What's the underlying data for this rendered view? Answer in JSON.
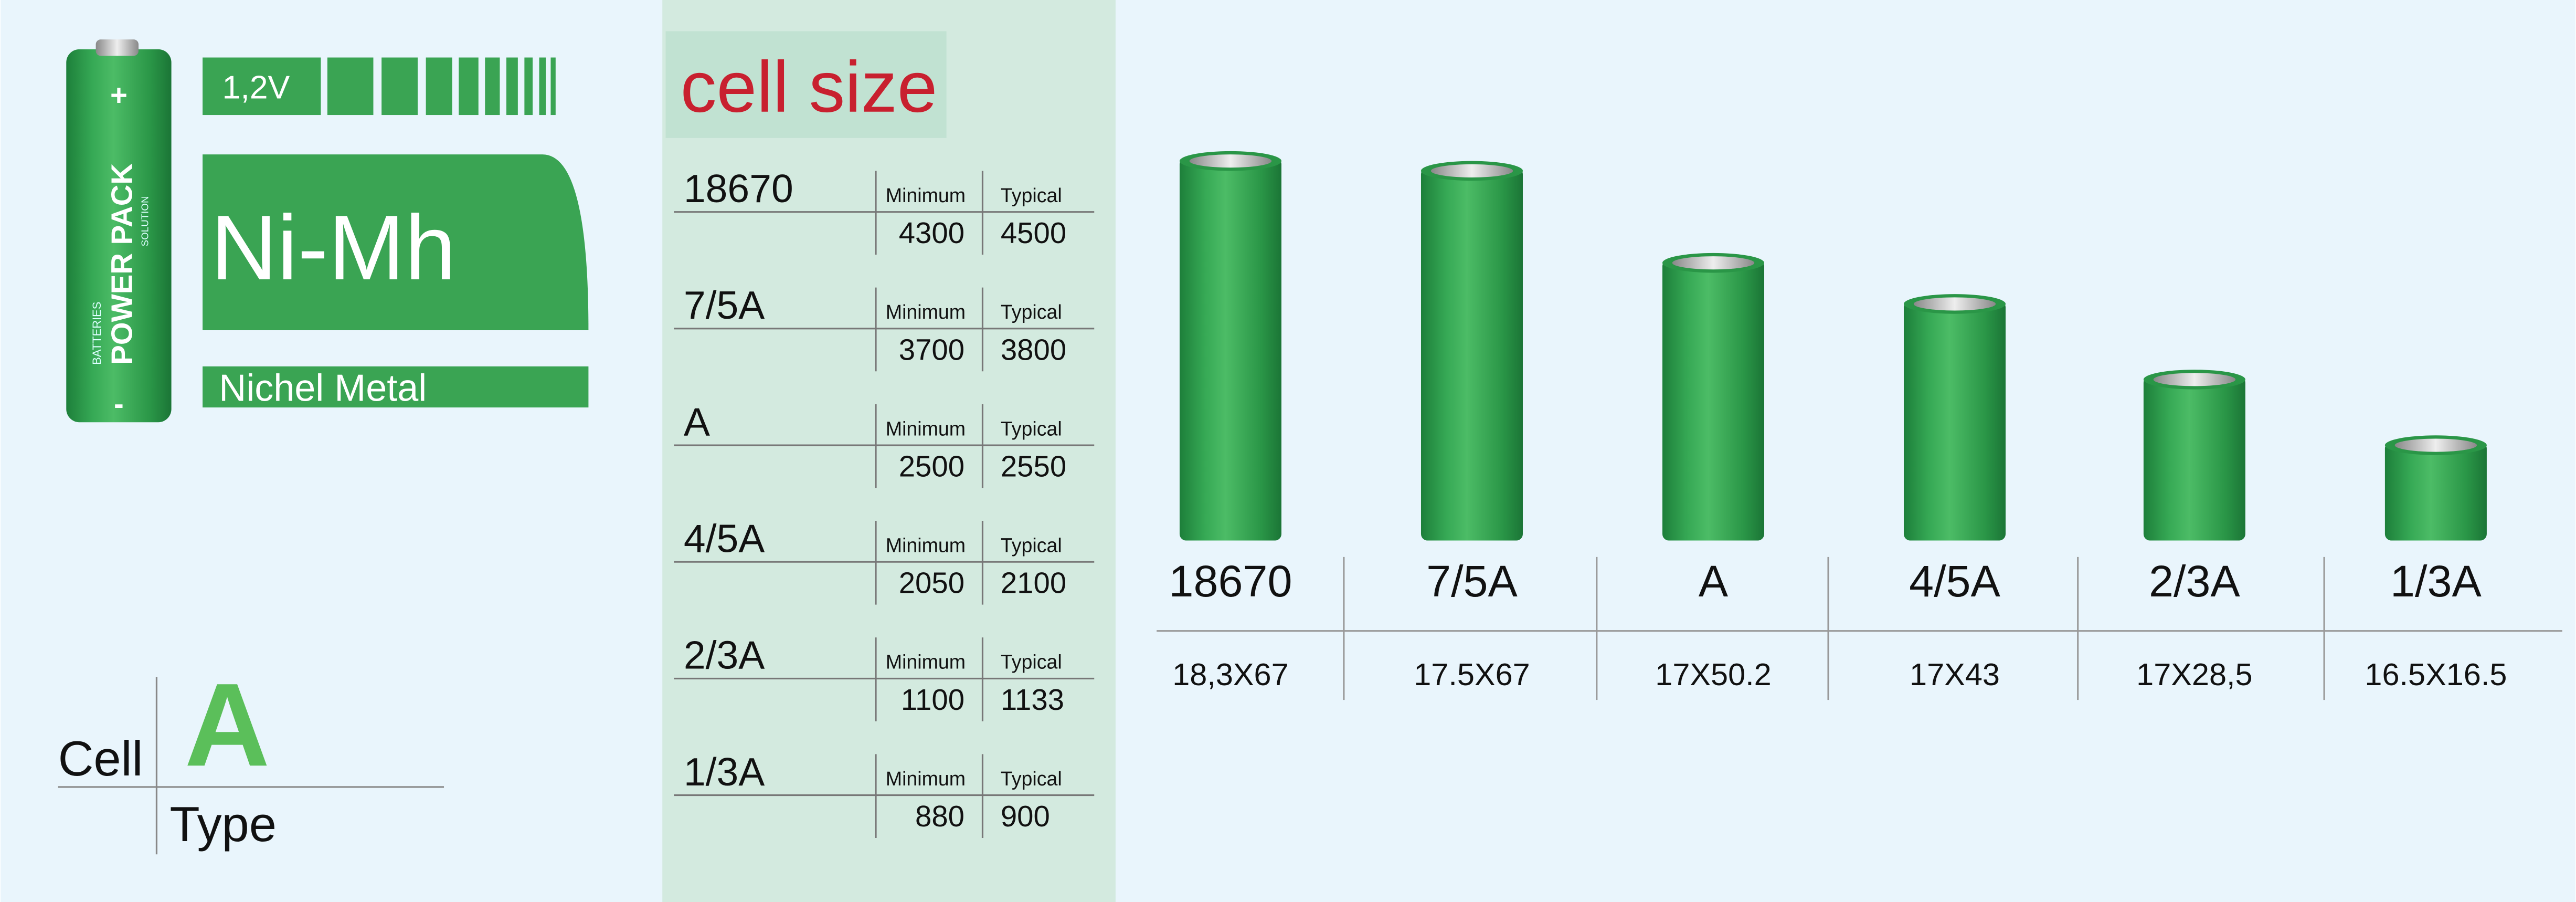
{
  "battery": {
    "brand": "POWER PACK",
    "top_text": "BATTERIES",
    "bottom_text": "SOLUTION",
    "plus": "+",
    "minus": "-"
  },
  "badge": {
    "voltage": "1,2V",
    "chemistry": "Ni-Mh",
    "name": "Nichel Metal"
  },
  "cell_type": {
    "cell": "Cell",
    "letter": "A",
    "type": "Type"
  },
  "capacity_table": {
    "title": "cell size",
    "rows": [
      {
        "name": "18670",
        "min_label": "Minimum",
        "typ_label": "Typical",
        "min": 4300,
        "typ": 4500
      },
      {
        "name": "7/5A",
        "min_label": "Minimum",
        "typ_label": "Typical",
        "min": 3700,
        "typ": 3800
      },
      {
        "name": "A",
        "min_label": "Minimum",
        "typ_label": "Typical",
        "min": 2500,
        "typ": 2550
      },
      {
        "name": "4/5A",
        "min_label": "Minimum",
        "typ_label": "Typical",
        "min": 2050,
        "typ": 2100
      },
      {
        "name": "2/3A",
        "min_label": "Minimum",
        "typ_label": "Typical",
        "min": 1100,
        "typ": 1133
      },
      {
        "name": "1/3A",
        "min_label": "Minimum",
        "typ_label": "Typical",
        "min": 880,
        "typ": 900
      }
    ]
  },
  "cells": [
    {
      "name": "18670",
      "size": "18,3X67"
    },
    {
      "name": "7/5A",
      "size": "17.5X67"
    },
    {
      "name": "A",
      "size": "17X50.2"
    },
    {
      "name": "4/5A",
      "size": "17X43"
    },
    {
      "name": "2/3A",
      "size": "17X28,5"
    },
    {
      "name": "1/3A",
      "size": "16.5X16.5"
    }
  ]
}
